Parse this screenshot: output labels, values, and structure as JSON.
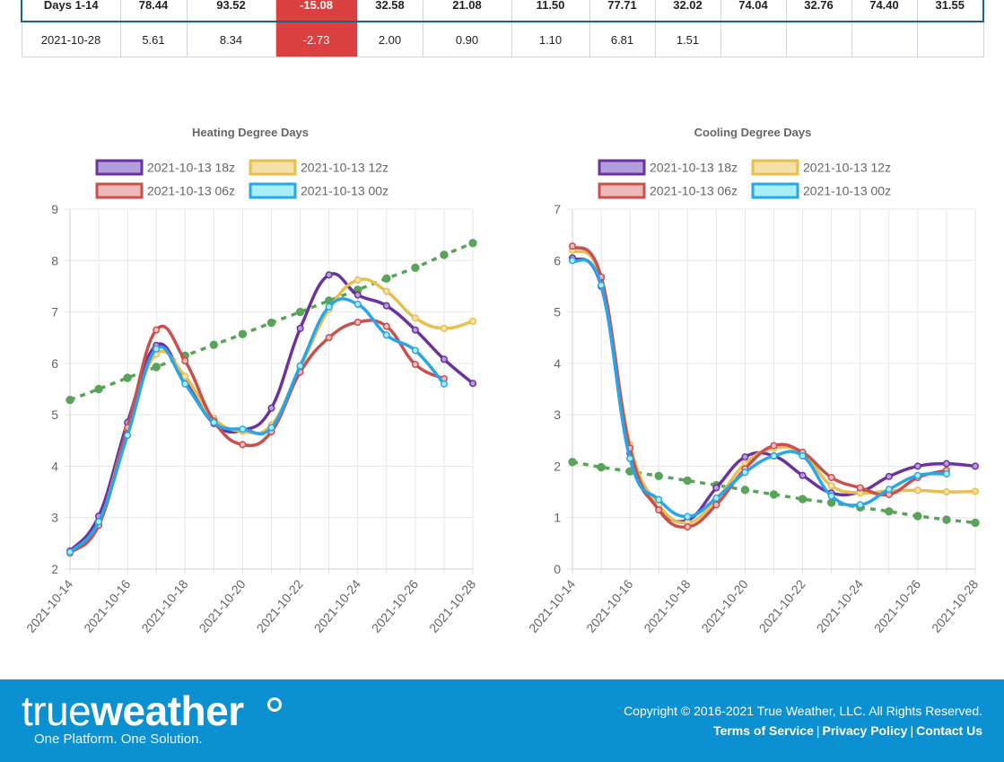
{
  "table": {
    "rows": [
      {
        "cells": [
          "Days 1-14",
          "78.44",
          "93.52",
          "-15.08",
          "32.58",
          "21.08",
          "11.50",
          "77.71",
          "32.02",
          "74.04",
          "32.76",
          "74.40",
          "31.55"
        ]
      },
      {
        "cells": [
          "2021-10-28",
          "5.61",
          "8.34",
          "-2.73",
          "2.00",
          "0.90",
          "1.10",
          "6.81",
          "1.51",
          "",
          "",
          "",
          ""
        ]
      }
    ],
    "negative_color": "#d9403f"
  },
  "chart_data": [
    {
      "type": "line",
      "title": "Heating Degree Days",
      "x": [
        "2021-10-14",
        "2021-10-15",
        "2021-10-16",
        "2021-10-17",
        "2021-10-18",
        "2021-10-19",
        "2021-10-20",
        "2021-10-21",
        "2021-10-22",
        "2021-10-23",
        "2021-10-24",
        "2021-10-25",
        "2021-10-26",
        "2021-10-27",
        "2021-10-28"
      ],
      "xticks": [
        "2021-10-14",
        "2021-10-16",
        "2021-10-18",
        "2021-10-20",
        "2021-10-22",
        "2021-10-24",
        "2021-10-26",
        "2021-10-28"
      ],
      "ylim": [
        2,
        9
      ],
      "yticks": [
        2,
        3,
        4,
        5,
        6,
        7,
        8,
        9
      ],
      "series": [
        {
          "name": "2021-10-13 18z",
          "color": "#6a33a0",
          "fill": "#b39ddb",
          "values": [
            2.35,
            3.03,
            4.85,
            6.35,
            5.65,
            4.83,
            4.7,
            5.13,
            6.68,
            7.72,
            7.33,
            7.12,
            6.65,
            6.08,
            5.61
          ]
        },
        {
          "name": "2021-10-13 12z",
          "color": "#e6bf4f",
          "fill": "#f5e0a8",
          "values": [
            2.3,
            2.88,
            4.72,
            6.18,
            5.75,
            4.93,
            4.68,
            4.8,
            5.92,
            7.05,
            7.62,
            7.4,
            6.88,
            6.68,
            6.82
          ]
        },
        {
          "name": "2021-10-13 06z",
          "color": "#c8504f",
          "fill": "#f0b8b8",
          "values": [
            2.32,
            2.85,
            4.75,
            6.65,
            6.05,
            4.88,
            4.42,
            4.67,
            5.83,
            6.5,
            6.8,
            6.72,
            5.98,
            5.7,
            null
          ]
        },
        {
          "name": "2021-10-13 00z",
          "color": "#28a6ea",
          "fill": "#a8f0f8",
          "values": [
            2.33,
            2.92,
            4.6,
            6.28,
            5.6,
            4.85,
            4.72,
            4.75,
            5.95,
            7.1,
            7.15,
            6.55,
            6.25,
            5.6,
            null
          ]
        },
        {
          "name": "",
          "color": "#5aa35a",
          "dashed": true,
          "values": [
            5.29,
            5.5,
            5.72,
            5.93,
            6.15,
            6.36,
            6.57,
            6.79,
            7.0,
            7.22,
            7.43,
            7.65,
            7.86,
            8.11,
            8.34
          ]
        }
      ]
    },
    {
      "type": "line",
      "title": "Cooling Degree Days",
      "x": [
        "2021-10-14",
        "2021-10-15",
        "2021-10-16",
        "2021-10-17",
        "2021-10-18",
        "2021-10-19",
        "2021-10-20",
        "2021-10-21",
        "2021-10-22",
        "2021-10-23",
        "2021-10-24",
        "2021-10-25",
        "2021-10-26",
        "2021-10-27",
        "2021-10-28"
      ],
      "xticks": [
        "2021-10-14",
        "2021-10-16",
        "2021-10-18",
        "2021-10-20",
        "2021-10-22",
        "2021-10-24",
        "2021-10-26",
        "2021-10-28"
      ],
      "ylim": [
        0,
        7
      ],
      "yticks": [
        0,
        1,
        2,
        3,
        4,
        5,
        6,
        7
      ],
      "series": [
        {
          "name": "2021-10-13 18z",
          "color": "#6a33a0",
          "fill": "#b39ddb",
          "values": [
            6.05,
            5.5,
            2.25,
            1.2,
            0.95,
            1.58,
            2.18,
            2.2,
            1.82,
            1.48,
            1.5,
            1.8,
            2.0,
            2.05,
            2.0
          ]
        },
        {
          "name": "2021-10-13 12z",
          "color": "#e6bf4f",
          "fill": "#f5e0a8",
          "values": [
            6.2,
            5.65,
            2.42,
            1.25,
            0.9,
            1.35,
            2.05,
            2.35,
            2.25,
            1.62,
            1.48,
            1.52,
            1.53,
            1.5,
            1.51
          ]
        },
        {
          "name": "2021-10-13 06z",
          "color": "#c8504f",
          "fill": "#f0b8b8",
          "values": [
            6.28,
            5.68,
            2.35,
            1.15,
            0.82,
            1.25,
            1.95,
            2.4,
            2.27,
            1.78,
            1.58,
            1.45,
            1.78,
            1.92,
            null
          ]
        },
        {
          "name": "2021-10-13 00z",
          "color": "#28a6ea",
          "fill": "#a8f0f8",
          "values": [
            6.0,
            5.52,
            2.15,
            1.35,
            1.02,
            1.38,
            1.88,
            2.2,
            2.2,
            1.42,
            1.25,
            1.55,
            1.82,
            1.85,
            null
          ]
        },
        {
          "name": "",
          "color": "#5aa35a",
          "dashed": true,
          "values": [
            2.08,
            1.98,
            1.9,
            1.81,
            1.72,
            1.63,
            1.54,
            1.45,
            1.36,
            1.29,
            1.2,
            1.12,
            1.03,
            0.96,
            0.9
          ]
        }
      ]
    }
  ],
  "footer": {
    "logo_light": "true",
    "logo_bold": "weather",
    "tagline": "One Platform. One Solution.",
    "copyright": "Copyright © 2016-2021 True Weather, LLC. All Rights Reserved.",
    "links": [
      "Terms of Service",
      "Privacy Policy",
      "Contact Us"
    ],
    "background": "#0b90d1"
  }
}
